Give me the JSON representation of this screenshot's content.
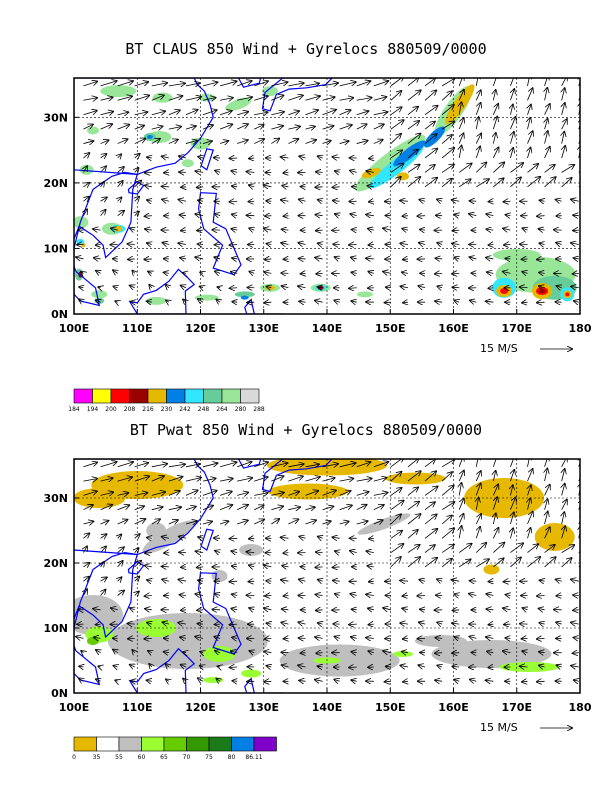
{
  "chart_data": [
    {
      "type": "heatmap",
      "title": "BT CLAUS 850 Wind + Gyrelocs 880509/0000",
      "field": "cloud brightness temperature (shaded) with 850 hPa wind vectors",
      "x_ticks": [
        "100E",
        "110E",
        "120E",
        "130E",
        "140E",
        "150E",
        "160E",
        "170E",
        "180"
      ],
      "y_ticks": [
        "0N",
        "10N",
        "20N",
        "30N"
      ],
      "xlim": [
        100,
        180
      ],
      "ylim": [
        0,
        36
      ],
      "grid": "dashed",
      "vector_scale_label": "15 M/S",
      "colorbar": {
        "labels": [
          "184",
          "194",
          "200",
          "208",
          "216",
          "230",
          "242",
          "248",
          "264",
          "280",
          "288"
        ],
        "colors": [
          "#ff00ff",
          "#ffff00",
          "#ff0000",
          "#990000",
          "#e6b800",
          "#0080e6",
          "#33e6ff",
          "#66cc99",
          "#99e699",
          "#d9d9d9"
        ]
      }
    },
    {
      "type": "heatmap",
      "title": "BT Pwat 850 Wind + Gyrelocs 880509/0000",
      "field": "precipitable water (shaded) with 850 hPa wind vectors",
      "x_ticks": [
        "100E",
        "110E",
        "120E",
        "130E",
        "140E",
        "150E",
        "160E",
        "170E",
        "180"
      ],
      "y_ticks": [
        "0N",
        "10N",
        "20N",
        "30N"
      ],
      "xlim": [
        100,
        180
      ],
      "ylim": [
        0,
        36
      ],
      "grid": "dashed",
      "vector_scale_label": "15 M/S",
      "colorbar": {
        "labels": [
          "0",
          "35",
          "55",
          "60",
          "65",
          "70",
          "75",
          "80",
          "86.11"
        ],
        "colors": [
          "#e6b800",
          "#ffffff",
          "#bfbfbf",
          "#99ff33",
          "#66cc00",
          "#339900",
          "#1a7a1a",
          "#0080e6",
          "#8000cc"
        ]
      }
    }
  ]
}
